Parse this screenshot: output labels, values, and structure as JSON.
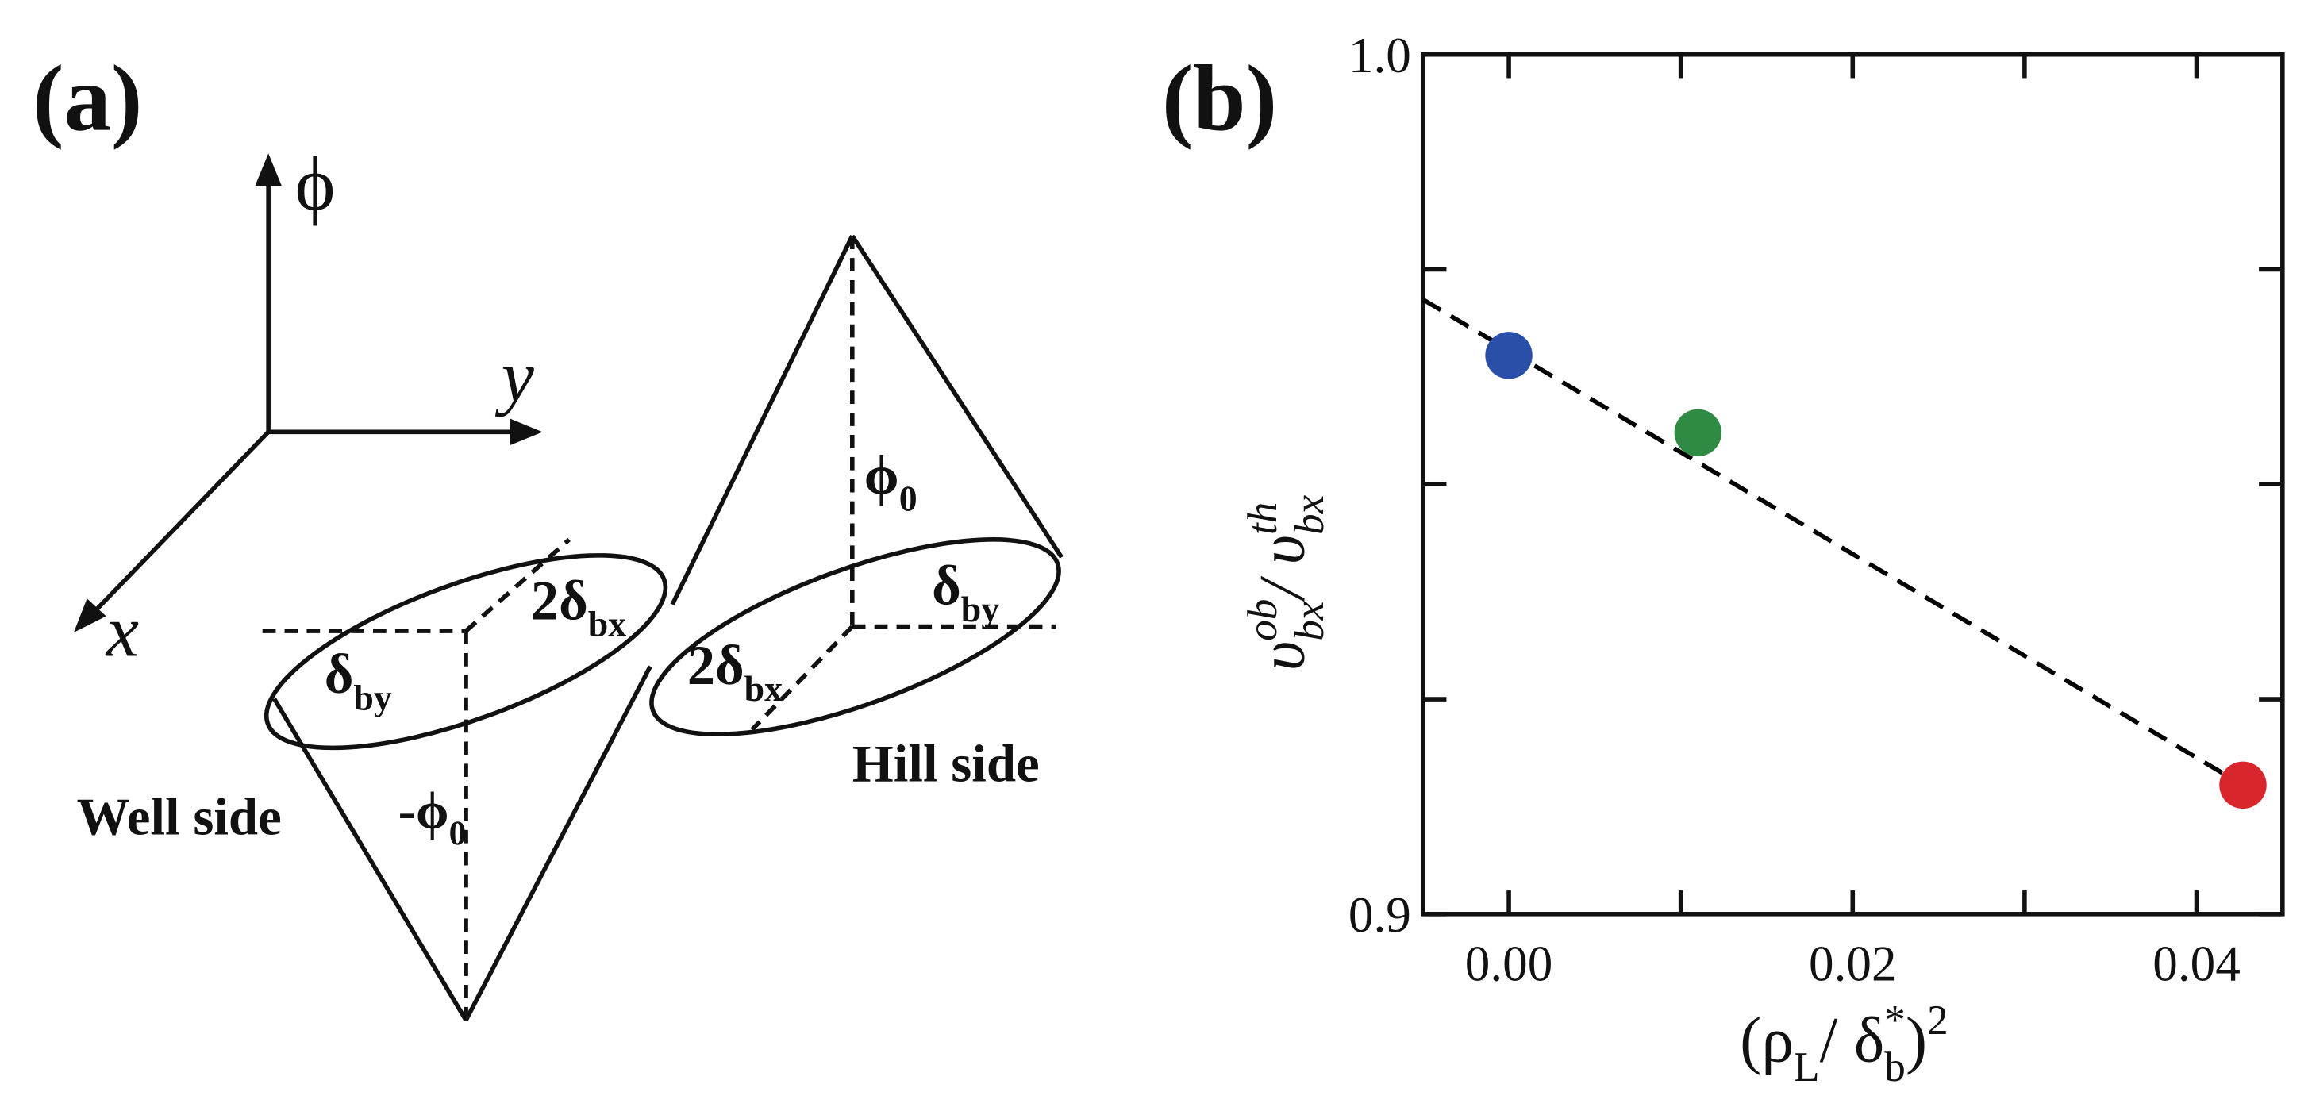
{
  "diagram": {
    "title": "(a)",
    "labels": [
      [
        {
          "text": "ϕ"
        }
      ],
      [
        {
          "text": "y"
        }
      ],
      [
        {
          "text": "x"
        }
      ],
      [
        {
          "text": "2δ",
          "sub": "bx"
        }
      ],
      [
        {
          "text": "δ",
          "sub": "by"
        }
      ],
      [
        {
          "text": "-ϕ",
          "sub": "0"
        }
      ],
      [
        {
          "text": "Well side"
        }
      ],
      [
        {
          "text": "ϕ",
          "sub": "0"
        }
      ],
      [
        {
          "text": "δ",
          "sub": "by"
        }
      ],
      [
        {
          "text": "2δ",
          "sub": "bx"
        }
      ],
      [
        {
          "text": "Hill side"
        }
      ]
    ]
  },
  "chart_data": {
    "type": "scatter",
    "title": "(b)",
    "xlabel": [
      {
        "text": "(ρ",
        "sub": "L"
      },
      {
        "text": "/ δ",
        "sub": "b",
        "sup": "*"
      },
      {
        "text": ")",
        "sup": "2"
      }
    ],
    "ylabel": [
      {
        "text": "υ",
        "sub": "bx",
        "sup": "ob"
      },
      {
        "text": "/ υ",
        "sub": "bx",
        "sup": "th"
      }
    ],
    "xlim": [
      -0.005,
      0.045
    ],
    "ylim": [
      0.9,
      1.0
    ],
    "xticks": [
      {
        "value": 0,
        "label": "0.00"
      },
      {
        "value": 0.02,
        "label": "0.02"
      },
      {
        "value": 0.04,
        "label": "0.04"
      }
    ],
    "xminor_ticks": [
      0.01,
      0.03
    ],
    "yticks": [
      0.9,
      {
        "value": 1,
        "label": "1.0"
      }
    ],
    "yminor_ticks": [
      0.925,
      0.95,
      0.975
    ],
    "series": [
      {
        "type": "scatter",
        "x": [
          0,
          0.011,
          0.0427
        ],
        "values": [
          0.965,
          0.956,
          0.915
        ],
        "colors": [
          "#2a4fa8",
          "#2f8a44",
          "#d8262c"
        ]
      },
      {
        "type": "line",
        "dashed": true,
        "color": "#000000",
        "x": [
          -0.005,
          0.0427
        ],
        "values": [
          0.9715,
          0.915
        ]
      }
    ]
  }
}
